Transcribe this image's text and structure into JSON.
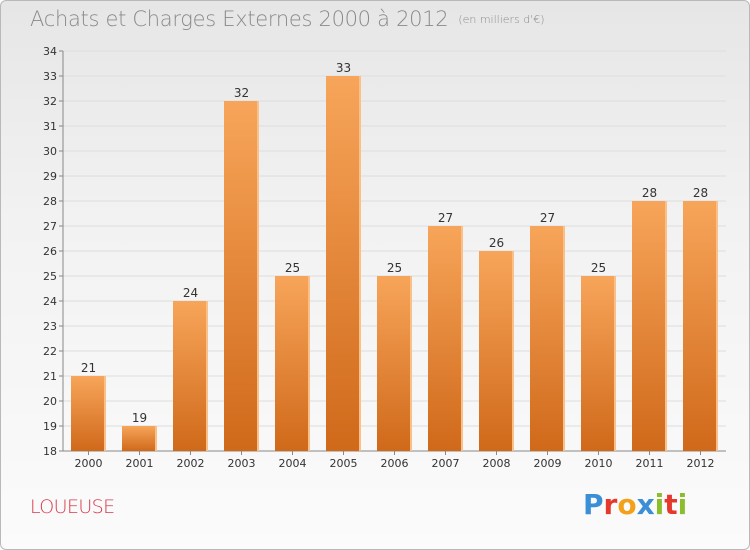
{
  "title": "Achats et Charges Externes 2000 à 2012",
  "subtitle": "(en milliers d'€)",
  "commune": "LOUEUSE",
  "logo": {
    "letters": [
      "P",
      "r",
      "o",
      "x",
      "i",
      "t",
      "i"
    ],
    "colors": [
      "#3a8fd6",
      "#e6392e",
      "#f2a21a",
      "#3a8fd6",
      "#8bbd2d",
      "#e6392e",
      "#8bbd2d"
    ]
  },
  "colors": {
    "bar_top": "#f7a55a",
    "bar_bottom": "#d0691a",
    "bar_edge": "#f9c08a",
    "grid": "#dddddd"
  },
  "chart_data": {
    "type": "bar",
    "title": "Achats et Charges Externes 2000 à 2012",
    "subtitle": "(en milliers d'€)",
    "categories": [
      "2000",
      "2001",
      "2002",
      "2003",
      "2004",
      "2005",
      "2006",
      "2007",
      "2008",
      "2009",
      "2010",
      "2011",
      "2012"
    ],
    "values": [
      21,
      19,
      24,
      32,
      25,
      33,
      25,
      27,
      26,
      27,
      25,
      28,
      28
    ],
    "ylim": [
      18,
      34
    ],
    "yticks": [
      18,
      19,
      20,
      21,
      22,
      23,
      24,
      25,
      26,
      27,
      28,
      29,
      30,
      31,
      32,
      33,
      34
    ],
    "grid": true,
    "data_labels": true
  }
}
